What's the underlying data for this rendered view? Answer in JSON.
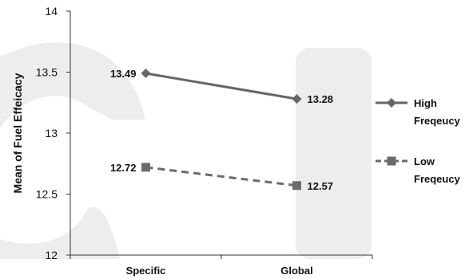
{
  "chart_data": {
    "type": "line",
    "categories": [
      "Specific",
      "Global"
    ],
    "ylabel": "Mean of Fuel Effeicacy",
    "ylim": [
      12,
      14
    ],
    "yticks": [
      "12",
      "12.5",
      "13",
      "13.5",
      "14"
    ],
    "legend_position": "right",
    "series": [
      {
        "name_lines": [
          "High",
          "Freqeucy"
        ],
        "values": [
          13.49,
          13.28
        ],
        "value_labels": [
          "13.49",
          "13.28"
        ],
        "marker": "diamond",
        "line_style": "solid",
        "color": "#666666"
      },
      {
        "name_lines": [
          "Low",
          "Freqeucy"
        ],
        "values": [
          12.72,
          12.57
        ],
        "value_labels": [
          "12.72",
          "12.57"
        ],
        "marker": "square",
        "line_style": "dashed",
        "color": "#6b6b6b"
      }
    ]
  }
}
